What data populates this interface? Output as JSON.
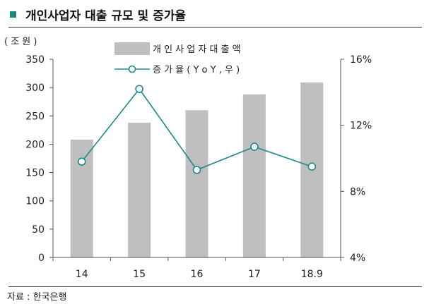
{
  "header": {
    "title": "개인사업자 대출 규모 및 증가율",
    "marker_color": "#1a8a7a"
  },
  "chart_data": {
    "type": "bar",
    "categories": [
      "14",
      "15",
      "16",
      "17",
      "18.9"
    ],
    "series": [
      {
        "name": "개 인 사 업 자  대 출 액",
        "type": "bar",
        "axis": "left",
        "color": "#bfbfbf",
        "values": [
          208,
          238,
          260,
          288,
          309
        ]
      },
      {
        "name": "증 가 율 ( Y o Y , 우 )",
        "type": "line",
        "axis": "right",
        "color": "#1a8a8a",
        "values": [
          9.8,
          14.2,
          9.3,
          10.7,
          9.5
        ]
      }
    ],
    "ylabel": "( 조 원 )",
    "ylim": [
      0,
      350
    ],
    "yticks": [
      0,
      50,
      100,
      150,
      200,
      250,
      300,
      350
    ],
    "y2lim": [
      4,
      16
    ],
    "y2ticks": [
      4,
      8,
      12,
      16
    ],
    "y2_tick_suffix": "%",
    "grid": false,
    "legend_position": "top-center"
  },
  "source": "자료 : 한국은행"
}
